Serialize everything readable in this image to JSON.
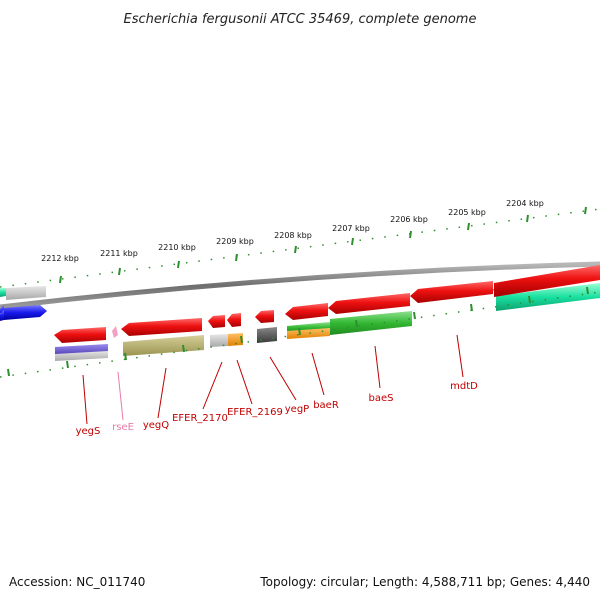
{
  "title": "Escherichia fergusonii ATCC 35469, complete genome",
  "footer": {
    "accession": "Accession: NC_011740",
    "topology": "Topology: circular; Length: 4,588,711 bp; Genes: 4,440"
  },
  "colors": {
    "backbone": "#7a7a7a",
    "tick": "#2f8f2f",
    "gene_red": "#e01010",
    "label_red": "#c00000",
    "label_pink": "#e87aa8",
    "blue": "#1a1aee",
    "teal": "#19e0a0",
    "green": "#33b833",
    "orange": "#ff9900",
    "olive": "#b5ad62",
    "purple": "#6a5acd",
    "grey": "#bfbfbf",
    "dark_grey": "#555555"
  },
  "kbp_labels": [
    "2212 kbp",
    "2211 kbp",
    "2210 kbp",
    "2209 kbp",
    "2208 kbp",
    "2207 kbp",
    "2206 kbp",
    "2205 kbp",
    "2204 kbp"
  ],
  "genes": [
    {
      "label": "yegS",
      "color": "#c00000"
    },
    {
      "label": "rseE",
      "color": "#e87aa8"
    },
    {
      "label": "yegQ",
      "color": "#c00000"
    },
    {
      "label": "EFER_2170",
      "color": "#c00000"
    },
    {
      "label": "EFER_2169",
      "color": "#c00000"
    },
    {
      "label": "yegP",
      "color": "#c00000"
    },
    {
      "label": "baeR",
      "color": "#c00000"
    },
    {
      "label": "baeS",
      "color": "#c00000"
    },
    {
      "label": "mdtD",
      "color": "#c00000"
    }
  ]
}
